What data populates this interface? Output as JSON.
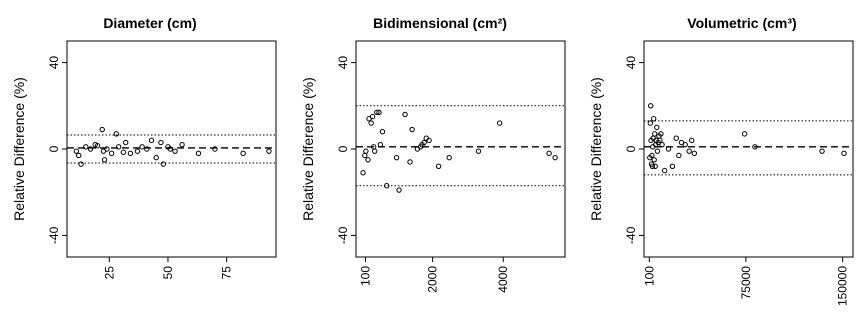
{
  "chart_data": [
    {
      "type": "scatter",
      "title": "Diameter (cm)",
      "xlabel": "",
      "ylabel": "Relative Difference (%)",
      "xlim": [
        7,
        96
      ],
      "ylim": [
        -50,
        50
      ],
      "x_ticks": [
        25,
        50,
        75
      ],
      "x_tick_labels": [
        "25",
        "50",
        "75"
      ],
      "y_ticks": [
        -40,
        0,
        40
      ],
      "y_tick_labels": [
        "-40",
        "0",
        "40"
      ],
      "mean_line": 0.5,
      "limits": [
        6.5,
        -6.5
      ],
      "points": [
        [
          11,
          -1
        ],
        [
          12,
          -3
        ],
        [
          13,
          -7
        ],
        [
          15,
          1
        ],
        [
          17,
          0
        ],
        [
          19,
          2
        ],
        [
          20,
          1.5
        ],
        [
          22,
          9
        ],
        [
          22.5,
          -1
        ],
        [
          23,
          -5
        ],
        [
          24,
          0
        ],
        [
          26,
          -2
        ],
        [
          28,
          7
        ],
        [
          29,
          1
        ],
        [
          31,
          -1.5
        ],
        [
          32,
          3
        ],
        [
          34,
          -2
        ],
        [
          37,
          -1
        ],
        [
          39,
          1
        ],
        [
          41,
          0
        ],
        [
          43,
          4
        ],
        [
          45,
          -4
        ],
        [
          47,
          3
        ],
        [
          48,
          -7
        ],
        [
          50,
          1
        ],
        [
          51,
          0
        ],
        [
          53,
          -1
        ],
        [
          56,
          2
        ],
        [
          63,
          -2
        ],
        [
          70,
          0
        ],
        [
          82,
          -2
        ],
        [
          93,
          -1
        ]
      ]
    },
    {
      "type": "scatter",
      "title": "Bidimensional (cm²)",
      "xlabel": "",
      "ylabel": "Relative Difference (%)",
      "xlim": [
        -170,
        5750
      ],
      "ylim": [
        -50,
        50
      ],
      "x_ticks": [
        100,
        2000,
        4000
      ],
      "x_tick_labels": [
        "100",
        "2000",
        "4000"
      ],
      "y_ticks": [
        -40,
        0,
        40
      ],
      "y_tick_labels": [
        "-40",
        "0",
        "40"
      ],
      "mean_line": 1,
      "limits": [
        20,
        -17
      ],
      "points": [
        [
          30,
          -11
        ],
        [
          80,
          -3
        ],
        [
          110,
          -1
        ],
        [
          170,
          -5
        ],
        [
          200,
          14
        ],
        [
          260,
          12
        ],
        [
          300,
          15
        ],
        [
          330,
          1
        ],
        [
          360,
          -1
        ],
        [
          420,
          17
        ],
        [
          480,
          17
        ],
        [
          520,
          2
        ],
        [
          580,
          8
        ],
        [
          700,
          -17
        ],
        [
          980,
          -4
        ],
        [
          1050,
          -19
        ],
        [
          1220,
          16
        ],
        [
          1360,
          -6
        ],
        [
          1420,
          9
        ],
        [
          1570,
          0
        ],
        [
          1660,
          1
        ],
        [
          1700,
          2
        ],
        [
          1760,
          3
        ],
        [
          1820,
          5
        ],
        [
          1900,
          4
        ],
        [
          2170,
          -8
        ],
        [
          2470,
          -4
        ],
        [
          3300,
          -1
        ],
        [
          3900,
          12
        ],
        [
          5300,
          -2
        ],
        [
          5470,
          -4
        ]
      ]
    },
    {
      "type": "scatter",
      "title": "Volumetric (cm³)",
      "xlabel": "",
      "ylabel": "Relative Difference (%)",
      "xlim": [
        -4000,
        158000
      ],
      "ylim": [
        -50,
        50
      ],
      "x_ticks": [
        100,
        75000,
        150000
      ],
      "x_tick_labels": [
        "100",
        "75000",
        "150000"
      ],
      "y_ticks": [
        -40,
        0,
        40
      ],
      "y_tick_labels": [
        "-40",
        "0",
        "40"
      ],
      "mean_line": 1,
      "limits": [
        13,
        -12
      ],
      "points": [
        [
          500,
          -4
        ],
        [
          900,
          12
        ],
        [
          1200,
          20
        ],
        [
          1500,
          4
        ],
        [
          1800,
          -7
        ],
        [
          2100,
          -3
        ],
        [
          2500,
          -8
        ],
        [
          2800,
          1
        ],
        [
          3100,
          5
        ],
        [
          3500,
          14
        ],
        [
          3900,
          -5
        ],
        [
          4300,
          7
        ],
        [
          4700,
          -8
        ],
        [
          5100,
          2
        ],
        [
          5500,
          4
        ],
        [
          5900,
          10
        ],
        [
          6400,
          -1
        ],
        [
          7000,
          3
        ],
        [
          7600,
          6
        ],
        [
          8300,
          4
        ],
        [
          9100,
          7
        ],
        [
          10000,
          2
        ],
        [
          12000,
          -10
        ],
        [
          15000,
          0
        ],
        [
          18000,
          -8
        ],
        [
          21000,
          5
        ],
        [
          23000,
          -3
        ],
        [
          25000,
          3
        ],
        [
          28000,
          2
        ],
        [
          31000,
          -1
        ],
        [
          33000,
          4
        ],
        [
          35000,
          -2
        ],
        [
          74000,
          7
        ],
        [
          82000,
          1
        ],
        [
          134000,
          -1
        ],
        [
          151000,
          -2
        ]
      ]
    }
  ]
}
